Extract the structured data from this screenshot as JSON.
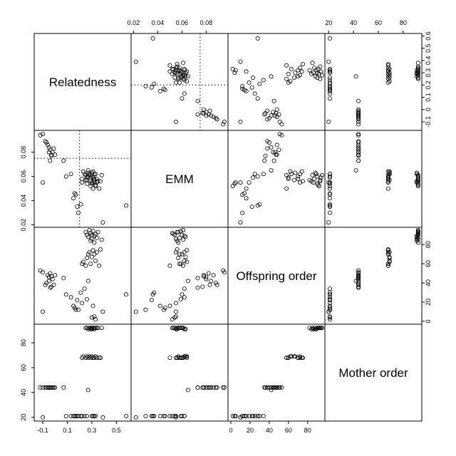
{
  "chart_data": {
    "type": "scatter",
    "subtype": "pairs-matrix",
    "title": "",
    "variables": [
      {
        "name": "Relatedness",
        "range": [
          -0.17,
          0.62
        ],
        "ticks": [
          -0.1,
          0.1,
          0.3,
          0.5
        ],
        "tick_labels": [
          "-0.1",
          "0.1",
          "0.3",
          "0.5"
        ],
        "extra_ticks": [
          0,
          0.2,
          0.4,
          0.6
        ],
        "extra_tick_labels": [
          "0",
          "0.2",
          "0.4",
          "0.6"
        ]
      },
      {
        "name": "EMM",
        "range": [
          0.018,
          0.098
        ],
        "ticks": [
          0.02,
          0.04,
          0.06,
          0.08
        ],
        "tick_labels": [
          "0.02",
          "0.04",
          "0.06",
          "0.08"
        ],
        "extra_ticks": [],
        "extra_tick_labels": []
      },
      {
        "name": "Offspring order",
        "range": [
          -3,
          98
        ],
        "ticks": [
          0,
          20,
          40,
          60,
          80
        ],
        "tick_labels": [
          "0",
          "20",
          "40",
          "60",
          "80"
        ],
        "extra_ticks": [],
        "extra_tick_labels": []
      },
      {
        "name": "Mother order",
        "range": [
          17,
          95
        ],
        "ticks": [
          20,
          40,
          60,
          80
        ],
        "tick_labels": [
          "20",
          "40",
          "60",
          "80"
        ],
        "extra_ticks": [],
        "extra_tick_labels": []
      }
    ],
    "reference_lines": {
      "Relatedness": 0.2,
      "EMM": 0.075
    },
    "points": [
      [
        -0.12,
        0.094,
        53,
        44
      ],
      [
        -0.1,
        0.095,
        51,
        44
      ],
      [
        -0.08,
        0.089,
        38,
        44
      ],
      [
        -0.07,
        0.088,
        40,
        44
      ],
      [
        -0.06,
        0.086,
        48,
        44
      ],
      [
        -0.05,
        0.084,
        42,
        44
      ],
      [
        -0.05,
        0.08,
        46,
        44
      ],
      [
        -0.04,
        0.082,
        50,
        44
      ],
      [
        -0.03,
        0.078,
        47,
        44
      ],
      [
        -0.03,
        0.077,
        36,
        44
      ],
      [
        -0.02,
        0.08,
        44,
        44
      ],
      [
        -0.01,
        0.083,
        38,
        44
      ],
      [
        0.0,
        0.078,
        48,
        44
      ],
      [
        -0.04,
        0.073,
        35,
        44
      ],
      [
        0.07,
        0.073,
        45,
        44
      ],
      [
        -0.1,
        0.055,
        10,
        20
      ],
      [
        0.09,
        0.06,
        28,
        21
      ],
      [
        0.13,
        0.062,
        25,
        21
      ],
      [
        0.16,
        0.046,
        14,
        21
      ],
      [
        0.15,
        0.042,
        16,
        21
      ],
      [
        0.17,
        0.045,
        12,
        21
      ],
      [
        0.18,
        0.035,
        22,
        21
      ],
      [
        0.19,
        0.03,
        12,
        21
      ],
      [
        0.21,
        0.037,
        30,
        21
      ],
      [
        0.22,
        0.055,
        19,
        21
      ],
      [
        0.24,
        0.062,
        34,
        21
      ],
      [
        0.26,
        0.059,
        23,
        21
      ],
      [
        0.3,
        0.054,
        4,
        21
      ],
      [
        0.32,
        0.055,
        5,
        21
      ],
      [
        0.31,
        0.05,
        16,
        21
      ],
      [
        0.33,
        0.052,
        2,
        21
      ],
      [
        0.39,
        0.022,
        10,
        20
      ],
      [
        0.58,
        0.036,
        28,
        21
      ],
      [
        0.27,
        0.065,
        42,
        42
      ],
      [
        0.22,
        0.058,
        60,
        68
      ],
      [
        0.23,
        0.064,
        62,
        69
      ],
      [
        0.25,
        0.061,
        58,
        68
      ],
      [
        0.26,
        0.057,
        66,
        69
      ],
      [
        0.27,
        0.06,
        70,
        68
      ],
      [
        0.28,
        0.062,
        72,
        69
      ],
      [
        0.29,
        0.059,
        60,
        68
      ],
      [
        0.3,
        0.063,
        67,
        69
      ],
      [
        0.31,
        0.064,
        74,
        68
      ],
      [
        0.32,
        0.058,
        70,
        68
      ],
      [
        0.33,
        0.062,
        63,
        69
      ],
      [
        0.34,
        0.055,
        72,
        68
      ],
      [
        0.36,
        0.05,
        58,
        68
      ],
      [
        0.37,
        0.056,
        75,
        68
      ],
      [
        0.26,
        0.054,
        90,
        92
      ],
      [
        0.25,
        0.057,
        93,
        92
      ],
      [
        0.27,
        0.063,
        88,
        91
      ],
      [
        0.28,
        0.061,
        95,
        92
      ],
      [
        0.29,
        0.056,
        84,
        91
      ],
      [
        0.29,
        0.052,
        92,
        92
      ],
      [
        0.3,
        0.06,
        90,
        92
      ],
      [
        0.3,
        0.055,
        86,
        91
      ],
      [
        0.31,
        0.059,
        94,
        92
      ],
      [
        0.32,
        0.057,
        82,
        92
      ],
      [
        0.32,
        0.062,
        89,
        91
      ],
      [
        0.33,
        0.053,
        91,
        92
      ],
      [
        0.34,
        0.058,
        87,
        92
      ],
      [
        0.35,
        0.056,
        93,
        92
      ],
      [
        0.38,
        0.061,
        85,
        92
      ]
    ]
  },
  "colors": {
    "points": "#000000",
    "frame": "#000000",
    "background": "#ffffff"
  }
}
